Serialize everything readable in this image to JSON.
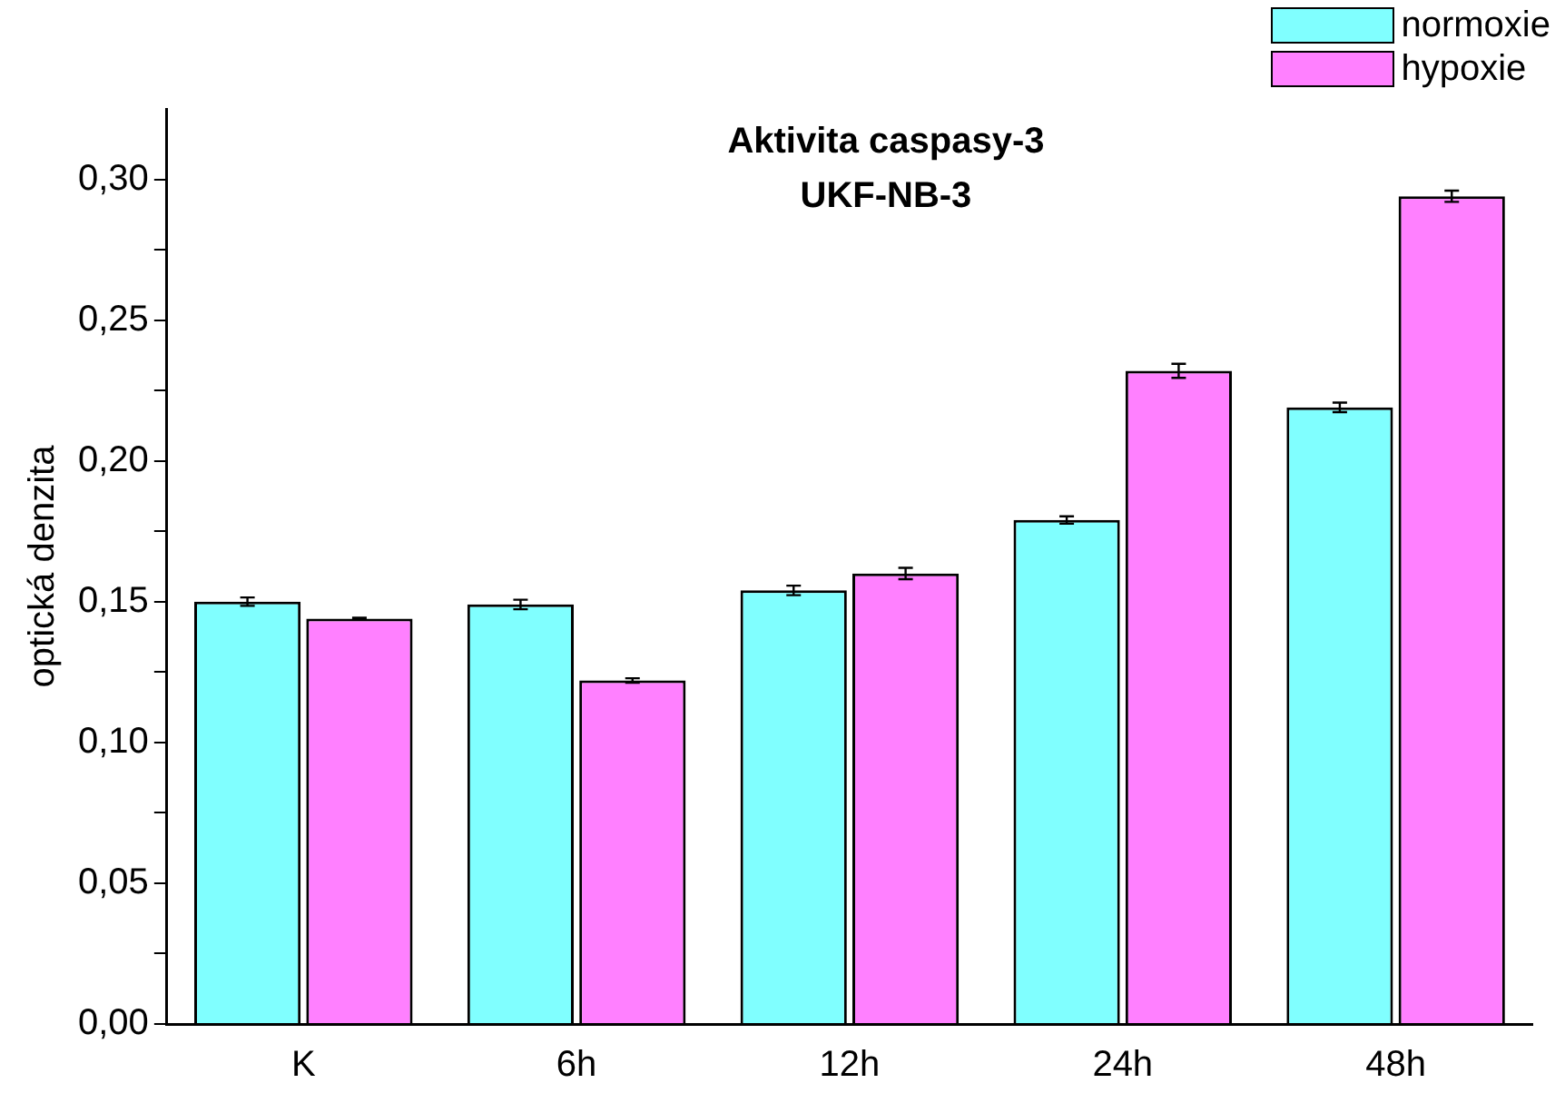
{
  "chart_data": {
    "type": "bar",
    "title": "Aktivita caspasy-3\nUKF-NB-3",
    "ylabel": "optická denzita",
    "categories": [
      "K",
      "6h",
      "12h",
      "24h",
      "48h"
    ],
    "series": [
      {
        "name": "normoxie",
        "color": "#80ffff",
        "values": [
          0.15,
          0.149,
          0.154,
          0.179,
          0.219
        ],
        "errors": [
          0.0015,
          0.0017,
          0.0017,
          0.0013,
          0.0017
        ]
      },
      {
        "name": "hypoxie",
        "color": "#ff80ff",
        "values": [
          0.144,
          0.122,
          0.16,
          0.232,
          0.294
        ],
        "errors": [
          0.0003,
          0.0008,
          0.002,
          0.0025,
          0.002
        ]
      }
    ],
    "ylim": [
      0,
      0.325
    ],
    "yticks": [
      {
        "value": 0,
        "label": "0,00"
      },
      {
        "value": 0.025,
        "label": null
      },
      {
        "value": 0.05,
        "label": "0,05"
      },
      {
        "value": 0.075,
        "label": null
      },
      {
        "value": 0.1,
        "label": "0,10"
      },
      {
        "value": 0.125,
        "label": null
      },
      {
        "value": 0.15,
        "label": "0,15"
      },
      {
        "value": 0.175,
        "label": null
      },
      {
        "value": 0.2,
        "label": "0,20"
      },
      {
        "value": 0.225,
        "label": null
      },
      {
        "value": 0.25,
        "label": "0,25"
      },
      {
        "value": 0.275,
        "label": null
      },
      {
        "value": 0.3,
        "label": "0,30"
      }
    ],
    "legend": "top right",
    "grid": false
  }
}
